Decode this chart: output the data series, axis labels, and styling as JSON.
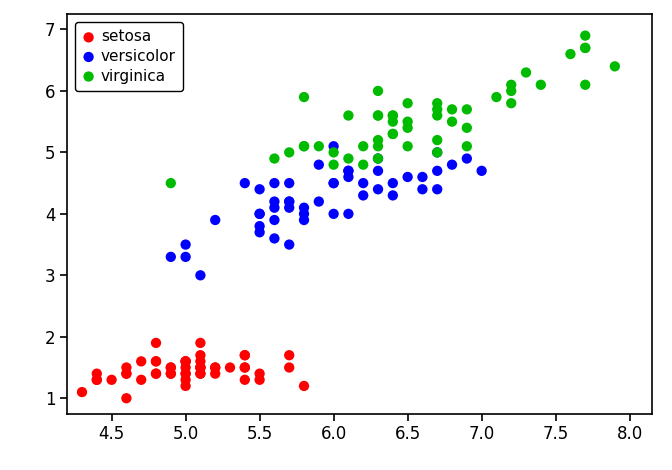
{
  "title": "",
  "xlabel": "",
  "ylabel": "",
  "xlim": [
    4.2,
    8.15
  ],
  "ylim": [
    0.75,
    7.25
  ],
  "xticks": [
    4.5,
    5.0,
    5.5,
    6.0,
    6.5,
    7.0,
    7.5,
    8.0
  ],
  "yticks": [
    1,
    2,
    3,
    4,
    5,
    6,
    7
  ],
  "legend_labels": [
    "setosa",
    "versicolor",
    "virginica"
  ],
  "legend_colors": [
    "#FF0000",
    "#0000FF",
    "#00BB00"
  ],
  "marker_size": 55,
  "setosa": {
    "x": [
      5.1,
      4.9,
      4.7,
      4.6,
      5.0,
      5.4,
      4.6,
      5.0,
      4.4,
      4.9,
      5.4,
      4.8,
      4.8,
      4.3,
      5.8,
      5.7,
      5.4,
      5.1,
      5.7,
      5.1,
      5.4,
      5.1,
      4.6,
      5.1,
      4.8,
      5.0,
      5.0,
      5.2,
      5.2,
      4.7,
      4.8,
      5.4,
      5.2,
      5.5,
      4.9,
      5.0,
      5.5,
      4.9,
      4.4,
      5.1,
      5.0,
      4.5,
      4.4,
      5.0,
      5.1,
      4.8,
      5.1,
      4.6,
      5.3,
      5.0
    ],
    "y": [
      1.4,
      1.4,
      1.3,
      1.5,
      1.4,
      1.7,
      1.4,
      1.5,
      1.4,
      1.5,
      1.5,
      1.6,
      1.4,
      1.1,
      1.2,
      1.5,
      1.3,
      1.4,
      1.7,
      1.5,
      1.7,
      1.5,
      1.0,
      1.7,
      1.9,
      1.6,
      1.6,
      1.5,
      1.4,
      1.6,
      1.6,
      1.5,
      1.5,
      1.4,
      1.5,
      1.2,
      1.3,
      1.4,
      1.3,
      1.5,
      1.3,
      1.3,
      1.3,
      1.6,
      1.9,
      1.4,
      1.6,
      1.4,
      1.5,
      1.4
    ],
    "color": "#FF0000"
  },
  "versicolor": {
    "x": [
      7.0,
      6.4,
      6.9,
      5.5,
      6.5,
      5.7,
      6.3,
      4.9,
      6.6,
      5.2,
      5.0,
      5.9,
      6.0,
      6.1,
      5.6,
      6.7,
      5.6,
      5.8,
      6.2,
      5.6,
      5.9,
      6.1,
      6.3,
      6.1,
      6.4,
      6.6,
      6.8,
      6.7,
      6.0,
      5.7,
      5.5,
      5.5,
      5.8,
      6.0,
      5.4,
      6.0,
      6.7,
      6.3,
      5.6,
      5.5,
      5.5,
      6.1,
      5.8,
      5.0,
      5.6,
      5.7,
      5.7,
      6.2,
      5.1,
      5.7
    ],
    "y": [
      4.7,
      4.5,
      4.9,
      4.0,
      4.6,
      4.5,
      4.7,
      3.3,
      4.6,
      3.9,
      3.5,
      4.2,
      4.0,
      4.7,
      3.6,
      4.4,
      4.5,
      4.1,
      4.5,
      3.9,
      4.8,
      4.0,
      4.9,
      4.7,
      4.3,
      4.4,
      4.8,
      5.0,
      4.5,
      3.5,
      3.8,
      3.7,
      3.9,
      5.1,
      4.5,
      4.5,
      4.7,
      4.4,
      4.1,
      4.0,
      4.4,
      4.6,
      4.0,
      3.3,
      4.2,
      4.2,
      4.2,
      4.3,
      3.0,
      4.1
    ],
    "color": "#0000FF"
  },
  "virginica": {
    "x": [
      6.3,
      5.8,
      7.1,
      6.3,
      6.5,
      7.6,
      4.9,
      7.3,
      6.7,
      7.2,
      6.5,
      6.4,
      6.8,
      5.7,
      5.8,
      6.4,
      6.5,
      7.7,
      7.7,
      6.0,
      6.9,
      5.6,
      7.7,
      6.3,
      6.7,
      7.2,
      6.2,
      6.1,
      6.4,
      7.2,
      7.4,
      7.9,
      6.4,
      6.3,
      6.1,
      7.7,
      6.3,
      6.4,
      6.0,
      6.9,
      6.7,
      6.9,
      5.8,
      6.8,
      6.7,
      6.7,
      6.3,
      6.5,
      6.2,
      5.9
    ],
    "y": [
      6.0,
      5.1,
      5.9,
      5.6,
      5.8,
      6.6,
      4.5,
      6.3,
      5.8,
      6.1,
      5.1,
      5.3,
      5.5,
      5.0,
      5.1,
      5.3,
      5.5,
      6.7,
      6.9,
      5.0,
      5.7,
      4.9,
      6.7,
      4.9,
      5.7,
      6.0,
      4.8,
      4.9,
      5.6,
      5.8,
      6.1,
      6.4,
      5.6,
      5.1,
      5.6,
      6.1,
      5.6,
      5.5,
      4.8,
      5.4,
      5.6,
      5.1,
      5.9,
      5.7,
      5.2,
      5.0,
      5.2,
      5.4,
      5.1,
      5.1
    ],
    "color": "#00BB00"
  },
  "figsize": [
    6.72,
    4.7
  ],
  "dpi": 100
}
